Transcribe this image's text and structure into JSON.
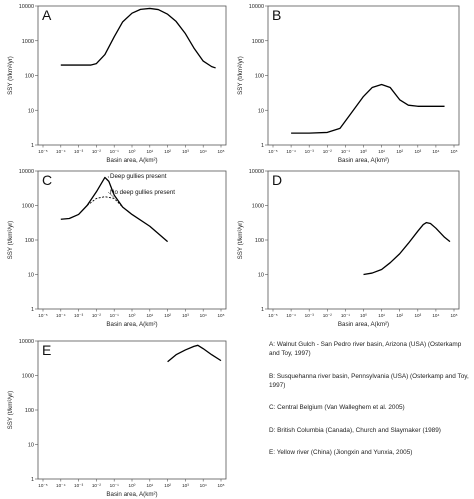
{
  "legend_entries": [
    "A: Walnut Gulch - San Pedro river basin, Arizona (USA) (Osterkamp and Toy, 1997)",
    "B: Susquehanna river basin, Pennsylvania (USA) (Osterkamp and Toy, 1997)",
    "C: Central Belgium (Van Walleghem et al. 2005)",
    "D: British Columbia (Canada), Church and Slaymaker (1989)",
    "E: Yellow river (China) (Jiongxin and Yunxia, 2005)"
  ],
  "chart_data": [
    {
      "type": "line",
      "panel_label": "A",
      "xlabel": "Basin area, A(km²)",
      "ylabel": "SSY (t/km²/yr)",
      "x_scale": "log",
      "y_scale": "log",
      "xlim": [
        1e-05,
        100000
      ],
      "ylim": [
        1,
        10000
      ],
      "x_ticks": [
        "10⁻⁵",
        "10⁻⁴",
        "10⁻³",
        "10⁻²",
        "10⁻¹",
        "10⁰",
        "10¹",
        "10²",
        "10³",
        "10⁴",
        "10⁵"
      ],
      "y_ticks": [
        "1",
        "10",
        "100",
        "1000",
        "10000"
      ],
      "series": [
        {
          "points": [
            [
              0.0001,
              200
            ],
            [
              0.001,
              200
            ],
            [
              0.005,
              200
            ],
            [
              0.01,
              220
            ],
            [
              0.03,
              400
            ],
            [
              0.1,
              1300
            ],
            [
              0.3,
              3500
            ],
            [
              1,
              6200
            ],
            [
              3,
              8000
            ],
            [
              10,
              8500
            ],
            [
              30,
              7900
            ],
            [
              100,
              5800
            ],
            [
              300,
              3600
            ],
            [
              1000,
              1600
            ],
            [
              3000,
              620
            ],
            [
              10000,
              260
            ],
            [
              30000,
              180
            ],
            [
              50000,
              165
            ]
          ]
        }
      ]
    },
    {
      "type": "line",
      "panel_label": "B",
      "xlabel": "Basin area, A(km²)",
      "ylabel": "SSY (t/km²/yr)",
      "x_scale": "log",
      "y_scale": "log",
      "xlim": [
        1e-05,
        100000
      ],
      "ylim": [
        1,
        10000
      ],
      "x_ticks": [
        "10⁻⁵",
        "10⁻⁴",
        "10⁻³",
        "10⁻²",
        "10⁻¹",
        "10⁰",
        "10¹",
        "10²",
        "10³",
        "10⁴",
        "10⁵"
      ],
      "y_ticks": [
        "1",
        "10",
        "100",
        "1000",
        "10000"
      ],
      "series": [
        {
          "points": [
            [
              0.0001,
              2.2
            ],
            [
              0.001,
              2.2
            ],
            [
              0.01,
              2.3
            ],
            [
              0.05,
              3
            ],
            [
              0.2,
              8
            ],
            [
              1,
              25
            ],
            [
              3,
              45
            ],
            [
              10,
              55
            ],
            [
              30,
              45
            ],
            [
              100,
              20
            ],
            [
              300,
              14
            ],
            [
              1000,
              13
            ],
            [
              10000,
              13
            ],
            [
              30000,
              13
            ]
          ]
        }
      ]
    },
    {
      "type": "line",
      "panel_label": "C",
      "xlabel": "Basin area, A(km²)",
      "ylabel": "SSY (t/km²/yr)",
      "x_scale": "log",
      "y_scale": "log",
      "xlim": [
        1e-05,
        100000
      ],
      "ylim": [
        1,
        10000
      ],
      "x_ticks": [
        "10⁻⁵",
        "10⁻⁴",
        "10⁻³",
        "10⁻²",
        "10⁻¹",
        "10⁰",
        "10¹",
        "10²",
        "10³",
        "10⁴",
        "10⁵"
      ],
      "y_ticks": [
        "1",
        "10",
        "100",
        "1000",
        "10000"
      ],
      "annotations": [
        "Deep gullies present",
        "No deep gullies present"
      ],
      "series": [
        {
          "style": "solid",
          "points": [
            [
              0.0001,
              400
            ],
            [
              0.0003,
              420
            ],
            [
              0.001,
              550
            ],
            [
              0.003,
              1000
            ],
            [
              0.01,
              2500
            ],
            [
              0.03,
              6500
            ],
            [
              0.05,
              5000
            ],
            [
              0.1,
              2000
            ],
            [
              0.3,
              900
            ],
            [
              1,
              550
            ],
            [
              10,
              250
            ],
            [
              100,
              90
            ]
          ]
        },
        {
          "style": "dashed",
          "points": [
            [
              0.003,
              1000
            ],
            [
              0.01,
              1600
            ],
            [
              0.03,
              1800
            ],
            [
              0.1,
              1600
            ],
            [
              0.3,
              900
            ]
          ]
        }
      ]
    },
    {
      "type": "line",
      "panel_label": "D",
      "xlabel": "Basin area, A(km²)",
      "ylabel": "SSY (t/km²/yr)",
      "x_scale": "log",
      "y_scale": "log",
      "xlim": [
        1e-05,
        100000
      ],
      "ylim": [
        1,
        10000
      ],
      "x_ticks": [
        "10⁻⁵",
        "10⁻⁴",
        "10⁻³",
        "10⁻²",
        "10⁻¹",
        "10⁰",
        "10¹",
        "10²",
        "10³",
        "10⁴",
        "10⁵"
      ],
      "y_ticks": [
        "1",
        "10",
        "100",
        "1000",
        "10000"
      ],
      "series": [
        {
          "points": [
            [
              1,
              10
            ],
            [
              3,
              11
            ],
            [
              10,
              14
            ],
            [
              30,
              22
            ],
            [
              100,
              40
            ],
            [
              300,
              80
            ],
            [
              1000,
              180
            ],
            [
              2000,
              280
            ],
            [
              3000,
              320
            ],
            [
              5000,
              300
            ],
            [
              10000,
              220
            ],
            [
              30000,
              120
            ],
            [
              60000,
              90
            ]
          ]
        }
      ]
    },
    {
      "type": "line",
      "panel_label": "E",
      "xlabel": "Basin area, A(km²)",
      "ylabel": "SSY (t/km²/yr)",
      "x_scale": "log",
      "y_scale": "log",
      "xlim": [
        1e-05,
        100000
      ],
      "ylim": [
        1,
        10000
      ],
      "x_ticks": [
        "10⁻⁵",
        "10⁻⁴",
        "10⁻³",
        "10⁻²",
        "10⁻¹",
        "10⁰",
        "10¹",
        "10²",
        "10³",
        "10⁴",
        "10⁵"
      ],
      "y_ticks": [
        "1",
        "10",
        "100",
        "1000",
        "10000"
      ],
      "series": [
        {
          "points": [
            [
              100,
              2500
            ],
            [
              300,
              4000
            ],
            [
              1000,
              5500
            ],
            [
              3000,
              7000
            ],
            [
              5000,
              7500
            ],
            [
              10000,
              6000
            ],
            [
              30000,
              4000
            ],
            [
              100000,
              2700
            ]
          ]
        }
      ]
    }
  ]
}
